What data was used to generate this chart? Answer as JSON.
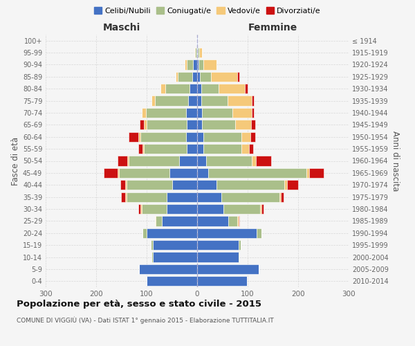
{
  "age_groups": [
    "0-4",
    "5-9",
    "10-14",
    "15-19",
    "20-24",
    "25-29",
    "30-34",
    "35-39",
    "40-44",
    "45-49",
    "50-54",
    "55-59",
    "60-64",
    "65-69",
    "70-74",
    "75-79",
    "80-84",
    "85-89",
    "90-94",
    "95-99",
    "100+"
  ],
  "birth_years": [
    "2010-2014",
    "2005-2009",
    "2000-2004",
    "1995-1999",
    "1990-1994",
    "1985-1989",
    "1980-1984",
    "1975-1979",
    "1970-1974",
    "1965-1969",
    "1960-1964",
    "1955-1959",
    "1950-1954",
    "1945-1949",
    "1940-1944",
    "1935-1939",
    "1930-1934",
    "1925-1929",
    "1920-1924",
    "1915-1919",
    "≤ 1914"
  ],
  "colors": {
    "celibe": "#4472C4",
    "coniugato": "#AABF8A",
    "vedovo": "#F5C97A",
    "divorziato": "#CC1111"
  },
  "maschi": {
    "celibe": [
      100,
      115,
      88,
      88,
      100,
      70,
      60,
      60,
      50,
      55,
      35,
      20,
      22,
      20,
      22,
      18,
      15,
      10,
      8,
      2,
      1
    ],
    "coniugato": [
      0,
      0,
      2,
      4,
      8,
      12,
      50,
      80,
      90,
      100,
      100,
      85,
      90,
      80,
      80,
      65,
      48,
      28,
      12,
      2,
      0
    ],
    "vedovo": [
      0,
      0,
      0,
      0,
      0,
      2,
      2,
      2,
      2,
      2,
      3,
      3,
      5,
      6,
      8,
      8,
      10,
      5,
      5,
      2,
      0
    ],
    "divorziato": [
      0,
      0,
      0,
      0,
      0,
      0,
      5,
      8,
      10,
      28,
      20,
      8,
      18,
      8,
      0,
      0,
      0,
      0,
      0,
      0,
      0
    ]
  },
  "femmine": {
    "nubile": [
      98,
      122,
      82,
      82,
      118,
      62,
      52,
      48,
      38,
      22,
      18,
      12,
      12,
      10,
      10,
      8,
      8,
      5,
      3,
      2,
      1
    ],
    "coniugata": [
      0,
      0,
      2,
      4,
      10,
      18,
      72,
      115,
      135,
      195,
      90,
      75,
      75,
      65,
      60,
      52,
      35,
      22,
      10,
      2,
      0
    ],
    "vedova": [
      0,
      0,
      0,
      0,
      0,
      2,
      3,
      3,
      5,
      5,
      8,
      16,
      18,
      32,
      38,
      48,
      52,
      52,
      25,
      5,
      0
    ],
    "divorziata": [
      0,
      0,
      0,
      0,
      0,
      2,
      5,
      5,
      22,
      28,
      30,
      8,
      10,
      8,
      5,
      5,
      5,
      5,
      0,
      0,
      0
    ]
  },
  "xlim": 300,
  "title": "Popolazione per età, sesso e stato civile - 2015",
  "subtitle": "COMUNE DI VIGGIÙ (VA) - Dati ISTAT 1° gennaio 2015 - Elaborazione TUTTITALIA.IT",
  "ylabel_left": "Fasce di età",
  "ylabel_right": "Anni di nascita",
  "xlabel_left": "Maschi",
  "xlabel_right": "Femmine",
  "background_color": "#f5f5f5",
  "grid_color": "#cccccc"
}
